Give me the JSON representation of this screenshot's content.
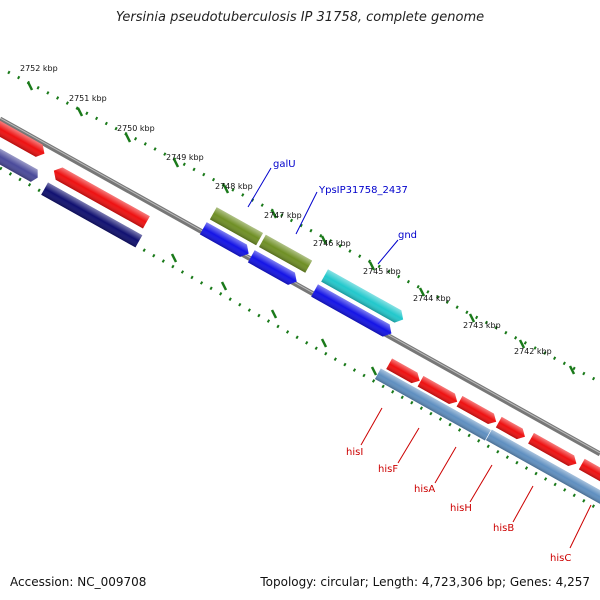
{
  "title": "Yersinia pseudotuberculosis IP 31758, complete genome",
  "accession": "Accession: NC_009708",
  "topology": "Topology: circular; Length: 4,723,306 bp; Genes: 4,257",
  "colors": {
    "backbone": "#777777",
    "ticks": "#1a7a1a",
    "red_feature": "#ee1111",
    "navy_feature": "#101070",
    "purple_feature": "#4a4a9a",
    "olive_feature": "#6f8f25",
    "blue_feature": "#1414e6",
    "cyan_feature": "#22c8cc",
    "steel_feature": "#5f8fc0",
    "label_blue": "#0000cc",
    "label_red": "#cc0000"
  },
  "scale": {
    "unit": "kbp",
    "labels": [
      "2752 kbp",
      "2751 kbp",
      "2750 kbp",
      "2749 kbp",
      "2748 kbp",
      "2747 kbp",
      "2746 kbp",
      "2745 kbp",
      "2744 kbp",
      "2743 kbp",
      "2742 kbp"
    ]
  },
  "gene_labels": {
    "top": [
      "galU",
      "YpsIP31758_2437",
      "gnd"
    ],
    "bottom": [
      "hisI",
      "hisF",
      "hisA",
      "hisH",
      "hisB",
      "hisC"
    ]
  }
}
